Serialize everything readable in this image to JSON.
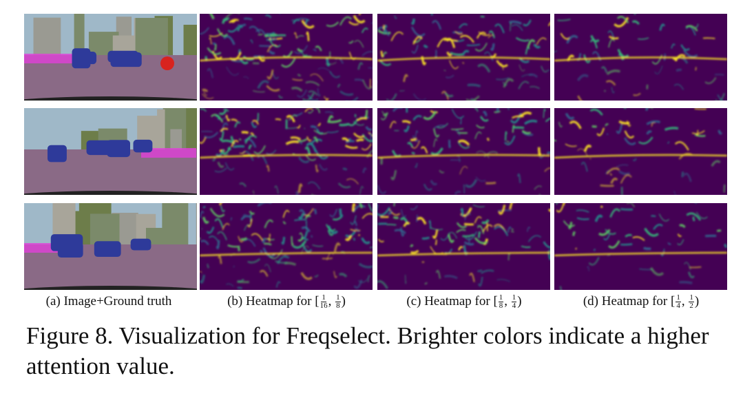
{
  "figure": {
    "columns": [
      {
        "label": "(a) Image+Ground truth"
      },
      {
        "prefix": "(b) Heatmap for",
        "open": "[",
        "lower": {
          "num": "1",
          "den": "16"
        },
        "sep": ",",
        "upper": {
          "num": "1",
          "den": "8"
        },
        "close": ")"
      },
      {
        "prefix": "(c) Heatmap for",
        "open": "[",
        "lower": {
          "num": "1",
          "den": "8"
        },
        "sep": ",",
        "upper": {
          "num": "1",
          "den": "4"
        },
        "close": ")"
      },
      {
        "prefix": "(d) Heatmap for",
        "open": "[",
        "lower": {
          "num": "1",
          "den": "4"
        },
        "sep": ",",
        "upper": {
          "num": "1",
          "den": "2"
        },
        "close": ")"
      }
    ],
    "caption": "Figure 8.  Visualization for Freqselect. Brighter colors indicate a higher attention value."
  }
}
